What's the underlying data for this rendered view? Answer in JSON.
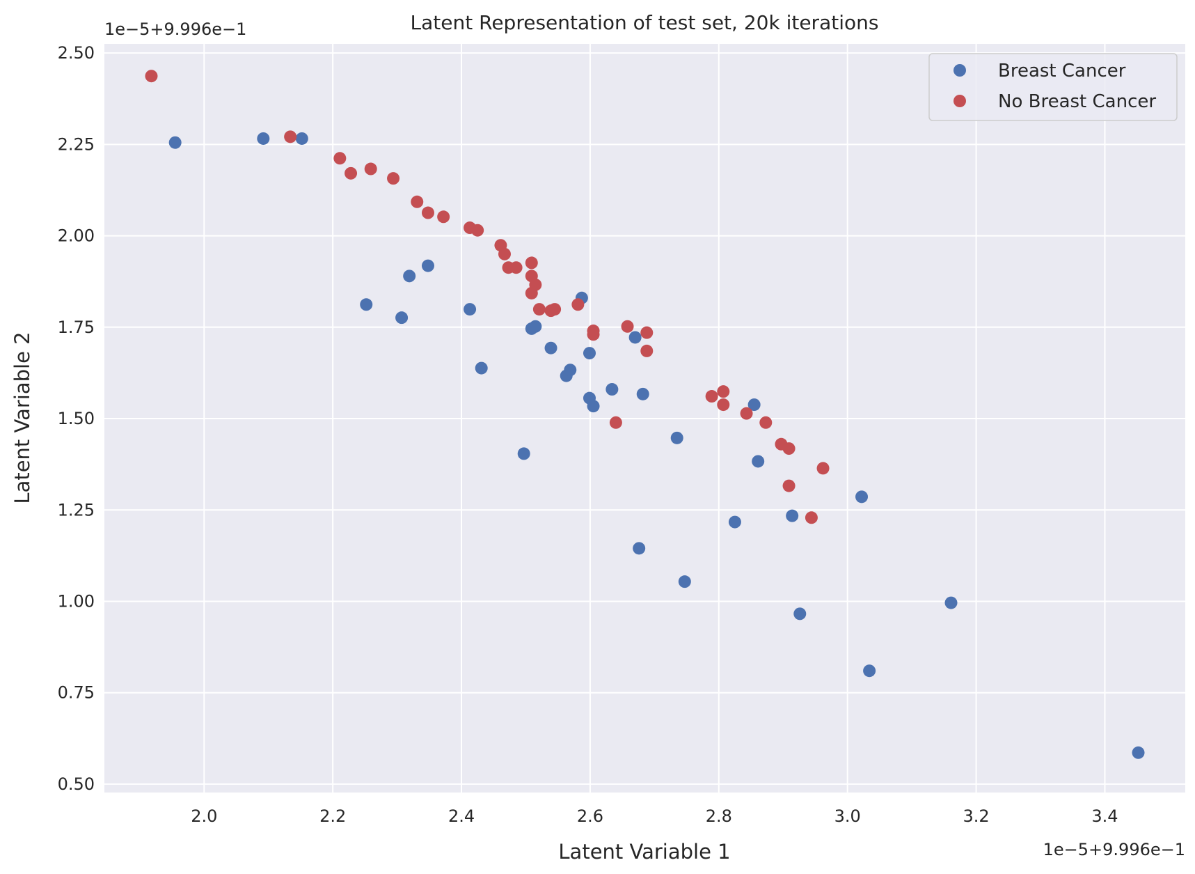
{
  "chart_data": {
    "type": "scatter",
    "title": "Latent Representation of test set, 20k iterations",
    "xlabel": "Latent Variable 1",
    "ylabel": "Latent Variable 2",
    "x_offset_label": "1e−5+9.996e−1",
    "y_offset_label": "1e−5+9.996e−1",
    "xlim": [
      1.845,
      3.525
    ],
    "ylim": [
      0.477,
      2.525
    ],
    "xticks": [
      2.0,
      2.2,
      2.4,
      2.6,
      2.8,
      3.0,
      3.2,
      3.4
    ],
    "xtick_labels": [
      "2.0",
      "2.2",
      "2.4",
      "2.6",
      "2.8",
      "3.0",
      "3.2",
      "3.4"
    ],
    "yticks": [
      0.5,
      0.75,
      1.0,
      1.25,
      1.5,
      1.75,
      2.0,
      2.25,
      2.5
    ],
    "ytick_labels": [
      "0.50",
      "0.75",
      "1.00",
      "1.25",
      "1.50",
      "1.75",
      "2.00",
      "2.25",
      "2.50"
    ],
    "grid": true,
    "legend_position": "top-right",
    "series": [
      {
        "name": "Breast Cancer",
        "color": "#4c72b0",
        "points": [
          [
            1.955,
            2.255
          ],
          [
            2.092,
            2.266
          ],
          [
            2.152,
            2.266
          ],
          [
            2.252,
            1.812
          ],
          [
            2.307,
            1.776
          ],
          [
            2.319,
            1.89
          ],
          [
            2.348,
            1.918
          ],
          [
            2.413,
            1.799
          ],
          [
            2.431,
            1.638
          ],
          [
            2.497,
            1.404
          ],
          [
            2.509,
            1.746
          ],
          [
            2.515,
            1.752
          ],
          [
            2.539,
            1.693
          ],
          [
            2.563,
            1.617
          ],
          [
            2.569,
            1.633
          ],
          [
            2.587,
            1.83
          ],
          [
            2.599,
            1.679
          ],
          [
            2.599,
            1.556
          ],
          [
            2.605,
            1.534
          ],
          [
            2.634,
            1.58
          ],
          [
            2.67,
            1.722
          ],
          [
            2.676,
            1.145
          ],
          [
            2.682,
            1.567
          ],
          [
            2.735,
            1.447
          ],
          [
            2.747,
            1.054
          ],
          [
            2.825,
            1.217
          ],
          [
            2.855,
            1.538
          ],
          [
            2.861,
            1.383
          ],
          [
            2.914,
            1.234
          ],
          [
            2.926,
            0.966
          ],
          [
            3.022,
            1.286
          ],
          [
            3.034,
            0.81
          ],
          [
            3.161,
            0.996
          ],
          [
            3.452,
            0.586
          ]
        ]
      },
      {
        "name": "No Breast Cancer",
        "color": "#c44e52",
        "points": [
          [
            1.918,
            2.437
          ],
          [
            2.134,
            2.271
          ],
          [
            2.211,
            2.212
          ],
          [
            2.228,
            2.171
          ],
          [
            2.259,
            2.183
          ],
          [
            2.294,
            2.157
          ],
          [
            2.331,
            2.093
          ],
          [
            2.348,
            2.063
          ],
          [
            2.372,
            2.052
          ],
          [
            2.413,
            2.022
          ],
          [
            2.425,
            2.015
          ],
          [
            2.461,
            1.974
          ],
          [
            2.467,
            1.95
          ],
          [
            2.473,
            1.913
          ],
          [
            2.485,
            1.913
          ],
          [
            2.509,
            1.926
          ],
          [
            2.509,
            1.89
          ],
          [
            2.515,
            1.866
          ],
          [
            2.509,
            1.843
          ],
          [
            2.521,
            1.799
          ],
          [
            2.539,
            1.795
          ],
          [
            2.545,
            1.799
          ],
          [
            2.581,
            1.812
          ],
          [
            2.605,
            1.74
          ],
          [
            2.605,
            1.73
          ],
          [
            2.658,
            1.752
          ],
          [
            2.688,
            1.735
          ],
          [
            2.688,
            1.685
          ],
          [
            2.64,
            1.489
          ],
          [
            2.789,
            1.561
          ],
          [
            2.807,
            1.574
          ],
          [
            2.807,
            1.538
          ],
          [
            2.843,
            1.514
          ],
          [
            2.873,
            1.489
          ],
          [
            2.897,
            1.43
          ],
          [
            2.909,
            1.418
          ],
          [
            2.909,
            1.316
          ],
          [
            2.944,
            1.229
          ],
          [
            2.962,
            1.364
          ]
        ]
      }
    ]
  }
}
